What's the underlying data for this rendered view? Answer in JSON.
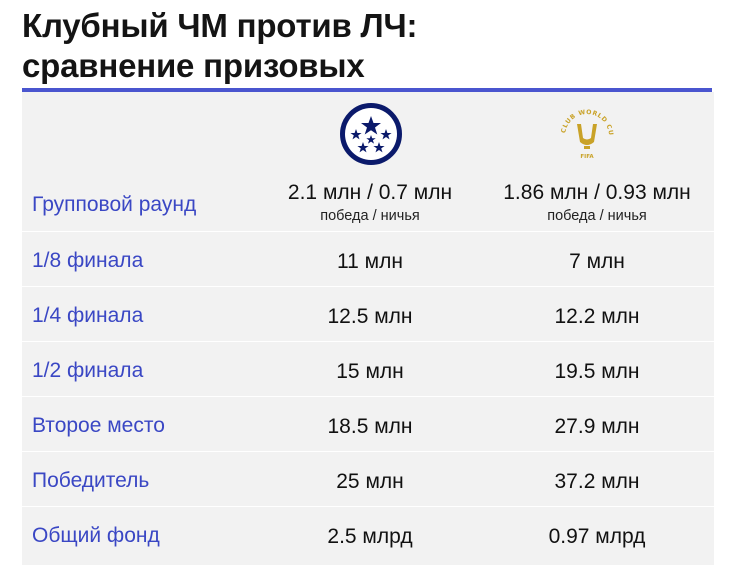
{
  "title": {
    "line1": "Клубный ЧМ против ЛЧ:",
    "line2": "сравнение призовых"
  },
  "columns": [
    {
      "name": "champions-league",
      "logo_icon": "champions-league-starball-icon"
    },
    {
      "name": "club-world-cup",
      "logo_icon": "club-world-cup-25-icon",
      "logo_text": "CLUB WORLD CUP 25",
      "logo_sub": "FIFA"
    }
  ],
  "rows": [
    {
      "stage": "Групповой раунд",
      "ucl": "2.1 млн / 0.7 млн",
      "ucl_sub": "победа / ничья",
      "cwc": "1.86 млн / 0.93 млн",
      "cwc_sub": "победа / ничья"
    },
    {
      "stage": "1/8 финала",
      "ucl": "11 млн",
      "cwc": "7 млн"
    },
    {
      "stage": "1/4 финала",
      "ucl": "12.5 млн",
      "cwc": "12.2 млн"
    },
    {
      "stage": "1/2 финала",
      "ucl": "15 млн",
      "cwc": "19.5 млн"
    },
    {
      "stage": "Второе место",
      "ucl": "18.5 млн",
      "cwc": "27.9 млн"
    },
    {
      "stage": "Победитель",
      "ucl": "25 млн",
      "cwc": "37.2 млн"
    },
    {
      "stage": "Общий фонд",
      "ucl": "2.5 млрд",
      "cwc": "0.97 млрд"
    }
  ],
  "colors": {
    "accent": "#4a55cf",
    "stage_text": "#3a47c4",
    "panel_bg": "#f2f2f2",
    "cwc_gold": "#c9a227"
  }
}
